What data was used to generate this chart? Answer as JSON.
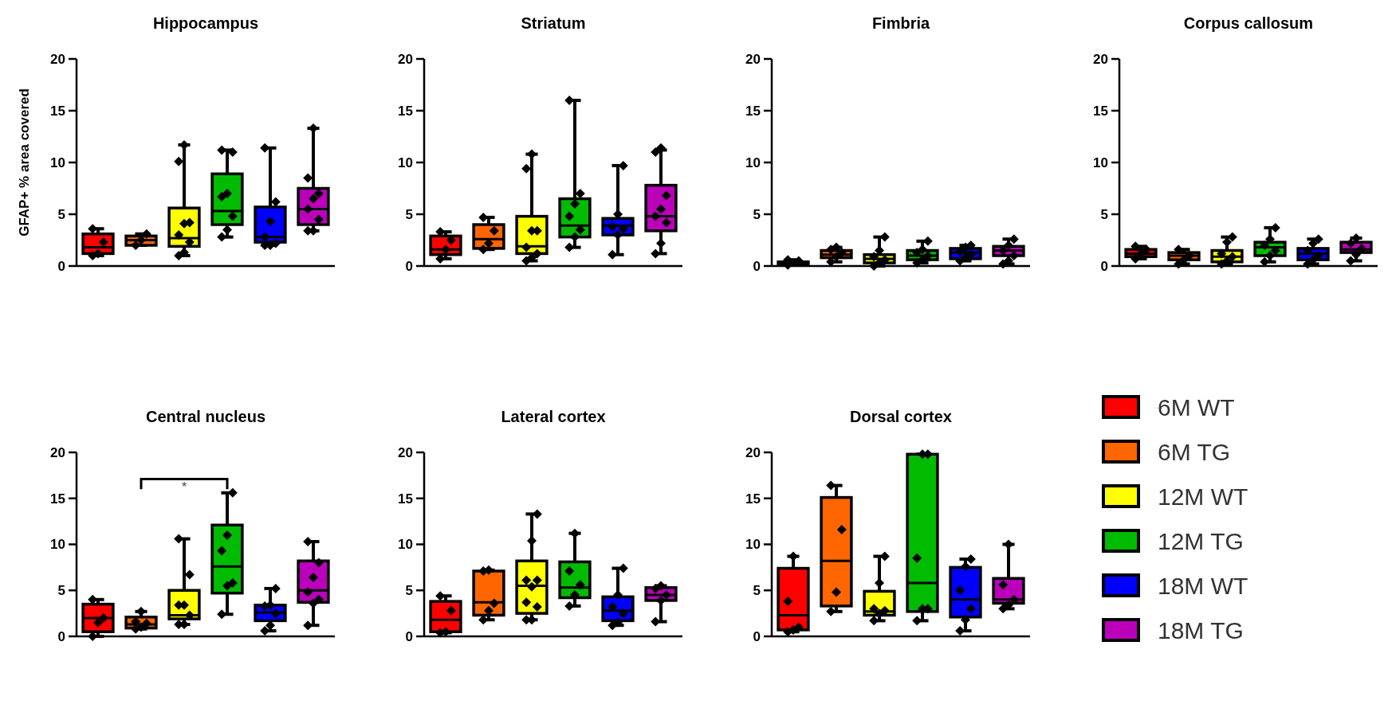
{
  "chart_data": [
    {
      "type": "box",
      "title": "Hippocampus",
      "ylabel": "GFAP+ % area covered",
      "categories": [
        null,
        null,
        null,
        null,
        null,
        null
      ],
      "colors": [
        "#ff0000",
        "#ff6600",
        "#ffff00",
        "#00bb00",
        "#0000ff",
        "#bb00bb"
      ],
      "ylim": [
        0,
        20
      ],
      "yticks": [
        0,
        5,
        10,
        15,
        20
      ],
      "marker": "diamond",
      "boxes": [
        {
          "low": 1.0,
          "q1": 1.2,
          "median": 1.8,
          "q3": 3.1,
          "high": 3.6
        },
        {
          "low": 2.0,
          "q1": 2.0,
          "median": 2.5,
          "q3": 2.9,
          "high": 3.1
        },
        {
          "low": 1.0,
          "q1": 1.9,
          "median": 2.7,
          "q3": 5.6,
          "high": 11.7
        },
        {
          "low": 2.8,
          "q1": 4.0,
          "median": 5.3,
          "q3": 8.9,
          "high": 11.2
        },
        {
          "low": 2.0,
          "q1": 2.3,
          "median": 2.8,
          "q3": 5.7,
          "high": 11.4
        },
        {
          "low": 3.4,
          "q1": 4.0,
          "median": 5.5,
          "q3": 7.5,
          "high": 13.3
        }
      ],
      "series": [
        {
          "type": "scatter",
          "color": "#000000",
          "values": [
            1.0,
            2.0,
            1.0,
            2.8,
            2.0,
            3.4
          ]
        },
        {
          "type": "scatter",
          "color": "#000000",
          "values": [
            1.2,
            2.5,
            1.3,
            3.5,
            2.0,
            3.4
          ]
        },
        {
          "type": "scatter",
          "color": "#000000",
          "values": [
            2.3,
            3.1,
            2.3,
            4.8,
            2.2,
            4.5
          ]
        },
        {
          "type": "scatter",
          "color": "#000000",
          "values": [
            3.6,
            null,
            3.0,
            6.7,
            2.8,
            5.5
          ]
        },
        {
          "type": "scatter",
          "color": "#000000",
          "values": [
            null,
            null,
            4.1,
            7.0,
            4.3,
            6.5
          ]
        },
        {
          "type": "scatter",
          "color": "#000000",
          "values": [
            null,
            null,
            4.2,
            11.0,
            6.2,
            7.0
          ]
        },
        {
          "type": "scatter",
          "color": "#000000",
          "values": [
            null,
            null,
            10.1,
            11.2,
            11.4,
            8.5
          ]
        },
        {
          "type": "scatter",
          "color": "#000000",
          "values": [
            null,
            null,
            11.7,
            null,
            null,
            13.3
          ]
        }
      ]
    },
    {
      "type": "box",
      "title": "Striatum",
      "categories": [
        null,
        null,
        null,
        null,
        null,
        null
      ],
      "colors": [
        "#ff0000",
        "#ff6600",
        "#ffff00",
        "#00bb00",
        "#0000ff",
        "#bb00bb"
      ],
      "ylim": [
        0,
        20
      ],
      "yticks": [
        0,
        5,
        10,
        15,
        20
      ],
      "marker": "diamond",
      "boxes": [
        {
          "low": 0.7,
          "q1": 1.1,
          "median": 1.6,
          "q3": 2.9,
          "high": 3.3
        },
        {
          "low": 1.6,
          "q1": 1.7,
          "median": 2.6,
          "q3": 4.0,
          "high": 4.7
        },
        {
          "low": 0.5,
          "q1": 1.2,
          "median": 1.9,
          "q3": 4.8,
          "high": 10.8
        },
        {
          "low": 1.8,
          "q1": 2.8,
          "median": 3.9,
          "q3": 6.5,
          "high": 16.0
        },
        {
          "low": 1.1,
          "q1": 3.0,
          "median": 3.9,
          "q3": 4.6,
          "high": 9.7
        },
        {
          "low": 1.2,
          "q1": 3.4,
          "median": 4.8,
          "q3": 7.8,
          "high": 11.2
        }
      ],
      "series": [
        {
          "type": "scatter",
          "color": "#000000",
          "values": [
            0.7,
            1.6,
            0.5,
            1.8,
            1.1,
            1.2
          ]
        },
        {
          "type": "scatter",
          "color": "#000000",
          "values": [
            1.6,
            2.2,
            0.8,
            2.8,
            3.0,
            2.2
          ]
        },
        {
          "type": "scatter",
          "color": "#000000",
          "values": [
            2.5,
            3.4,
            1.2,
            3.5,
            3.6,
            4.2
          ]
        },
        {
          "type": "scatter",
          "color": "#000000",
          "values": [
            3.3,
            4.7,
            1.8,
            4.8,
            3.8,
            4.8
          ]
        },
        {
          "type": "scatter",
          "color": "#000000",
          "values": [
            null,
            null,
            3.4,
            6.0,
            5.0,
            5.5
          ]
        },
        {
          "type": "scatter",
          "color": "#000000",
          "values": [
            null,
            null,
            3.4,
            7.0,
            9.7,
            6.8
          ]
        },
        {
          "type": "scatter",
          "color": "#000000",
          "values": [
            null,
            null,
            9.4,
            16.0,
            null,
            11.0
          ]
        },
        {
          "type": "scatter",
          "color": "#000000",
          "values": [
            null,
            null,
            10.8,
            null,
            null,
            11.4
          ]
        }
      ]
    },
    {
      "type": "box",
      "title": "Fimbria",
      "categories": [
        null,
        null,
        null,
        null,
        null,
        null
      ],
      "colors": [
        "#ff0000",
        "#ff6600",
        "#ffff00",
        "#00bb00",
        "#0000ff",
        "#bb00bb"
      ],
      "ylim": [
        0,
        20
      ],
      "yticks": [
        0,
        5,
        10,
        15,
        20
      ],
      "marker": "diamond",
      "boxes": [
        {
          "low": 0.1,
          "q1": 0.2,
          "median": 0.3,
          "q3": 0.4,
          "high": 0.6
        },
        {
          "low": 0.4,
          "q1": 0.8,
          "median": 1.1,
          "q3": 1.5,
          "high": 1.8
        },
        {
          "low": 0.0,
          "q1": 0.3,
          "median": 0.7,
          "q3": 1.1,
          "high": 2.8
        },
        {
          "low": 0.3,
          "q1": 0.6,
          "median": 1.0,
          "q3": 1.5,
          "high": 2.4
        },
        {
          "low": 0.5,
          "q1": 0.7,
          "median": 1.3,
          "q3": 1.7,
          "high": 2.0
        },
        {
          "low": 0.2,
          "q1": 1.0,
          "median": 1.5,
          "q3": 1.9,
          "high": 2.6
        }
      ],
      "series": [
        {
          "type": "scatter",
          "color": "#000000",
          "values": [
            0.1,
            0.4,
            0.0,
            0.3,
            0.5,
            0.2
          ]
        },
        {
          "type": "scatter",
          "color": "#000000",
          "values": [
            null,
            0.9,
            0.3,
            0.6,
            0.8,
            0.5
          ]
        },
        {
          "type": "scatter",
          "color": "#000000",
          "values": [
            0.5,
            1.3,
            0.6,
            1.0,
            1.1,
            1.0
          ]
        },
        {
          "type": "scatter",
          "color": "#000000",
          "values": [
            0.6,
            1.6,
            0.9,
            1.3,
            1.4,
            1.5
          ]
        },
        {
          "type": "scatter",
          "color": "#000000",
          "values": [
            null,
            1.8,
            1.5,
            1.6,
            1.8,
            2.0
          ]
        },
        {
          "type": "scatter",
          "color": "#000000",
          "values": [
            null,
            null,
            2.8,
            2.4,
            2.0,
            2.6
          ]
        }
      ]
    },
    {
      "type": "box",
      "title": "Corpus callosum",
      "categories": [
        null,
        null,
        null,
        null,
        null,
        null
      ],
      "colors": [
        "#ff0000",
        "#ff6600",
        "#ffff00",
        "#00bb00",
        "#0000ff",
        "#bb00bb"
      ],
      "ylim": [
        0,
        20
      ],
      "yticks": [
        0,
        5,
        10,
        15,
        20
      ],
      "marker": "diamond",
      "boxes": [
        {
          "low": 0.7,
          "q1": 0.9,
          "median": 1.2,
          "q3": 1.6,
          "high": 1.9
        },
        {
          "low": 0.2,
          "q1": 0.6,
          "median": 1.0,
          "q3": 1.3,
          "high": 1.6
        },
        {
          "low": 0.2,
          "q1": 0.4,
          "median": 0.9,
          "q3": 1.5,
          "high": 2.8
        },
        {
          "low": 0.4,
          "q1": 1.0,
          "median": 1.8,
          "q3": 2.3,
          "high": 3.7
        },
        {
          "low": 0.2,
          "q1": 0.6,
          "median": 1.2,
          "q3": 1.7,
          "high": 2.6
        },
        {
          "low": 0.5,
          "q1": 1.3,
          "median": 1.6,
          "q3": 2.3,
          "high": 2.7
        }
      ],
      "series": [
        {
          "type": "scatter",
          "color": "#000000",
          "values": [
            0.7,
            0.2,
            0.2,
            0.4,
            0.2,
            0.5
          ]
        },
        {
          "type": "scatter",
          "color": "#000000",
          "values": [
            1.2,
            0.6,
            0.5,
            1.0,
            0.6,
            1.1
          ]
        },
        {
          "type": "scatter",
          "color": "#000000",
          "values": [
            1.6,
            1.0,
            0.9,
            1.5,
            1.0,
            1.7
          ]
        },
        {
          "type": "scatter",
          "color": "#000000",
          "values": [
            1.9,
            1.6,
            1.2,
            2.0,
            1.5,
            2.2
          ]
        },
        {
          "type": "scatter",
          "color": "#000000",
          "values": [
            null,
            null,
            2.3,
            2.6,
            2.2,
            2.7
          ]
        },
        {
          "type": "scatter",
          "color": "#000000",
          "values": [
            null,
            null,
            2.8,
            3.7,
            2.6,
            null
          ]
        }
      ]
    },
    {
      "type": "box",
      "title": "Central nucleus",
      "annotations": [
        "*"
      ],
      "categories": [
        null,
        null,
        null,
        null,
        null,
        null
      ],
      "colors": [
        "#ff0000",
        "#ff6600",
        "#ffff00",
        "#00bb00",
        "#0000ff",
        "#bb00bb"
      ],
      "ylim": [
        0,
        20
      ],
      "yticks": [
        0,
        5,
        10,
        15,
        20
      ],
      "marker": "diamond",
      "boxes": [
        {
          "low": 0.0,
          "q1": 0.5,
          "median": 2.0,
          "q3": 3.5,
          "high": 4.0
        },
        {
          "low": 0.8,
          "q1": 0.9,
          "median": 1.3,
          "q3": 2.1,
          "high": 2.7
        },
        {
          "low": 1.3,
          "q1": 1.9,
          "median": 2.3,
          "q3": 5.0,
          "high": 10.6
        },
        {
          "low": 2.4,
          "q1": 4.7,
          "median": 7.6,
          "q3": 12.1,
          "high": 15.6
        },
        {
          "low": 0.6,
          "q1": 1.7,
          "median": 2.6,
          "q3": 3.4,
          "high": 5.2
        },
        {
          "low": 1.2,
          "q1": 3.7,
          "median": 5.0,
          "q3": 8.2,
          "high": 10.3
        }
      ],
      "series": [
        {
          "type": "scatter",
          "color": "#000000",
          "values": [
            0.0,
            0.8,
            1.3,
            2.4,
            0.6,
            1.2
          ]
        },
        {
          "type": "scatter",
          "color": "#000000",
          "values": [
            1.5,
            1.0,
            1.3,
            5.5,
            1.2,
            3.6
          ]
        },
        {
          "type": "scatter",
          "color": "#000000",
          "values": [
            2.0,
            1.4,
            2.3,
            5.8,
            2.5,
            4.0
          ]
        },
        {
          "type": "scatter",
          "color": "#000000",
          "values": [
            4.0,
            1.6,
            3.4,
            9.3,
            3.3,
            4.8
          ]
        },
        {
          "type": "scatter",
          "color": "#000000",
          "values": [
            null,
            2.7,
            3.4,
            11.0,
            3.4,
            6.4
          ]
        },
        {
          "type": "scatter",
          "color": "#000000",
          "values": [
            null,
            null,
            6.7,
            15.6,
            5.2,
            8.0
          ]
        },
        {
          "type": "scatter",
          "color": "#000000",
          "values": [
            null,
            null,
            10.6,
            null,
            null,
            10.3
          ]
        }
      ]
    },
    {
      "type": "box",
      "title": "Lateral cortex",
      "categories": [
        null,
        null,
        null,
        null,
        null,
        null
      ],
      "colors": [
        "#ff0000",
        "#ff6600",
        "#ffff00",
        "#00bb00",
        "#0000ff",
        "#bb00bb"
      ],
      "ylim": [
        0,
        20
      ],
      "yticks": [
        0,
        5,
        10,
        15,
        20
      ],
      "marker": "diamond",
      "boxes": [
        {
          "low": 0.4,
          "q1": 0.5,
          "median": 1.8,
          "q3": 3.8,
          "high": 4.4
        },
        {
          "low": 1.8,
          "q1": 2.3,
          "median": 3.7,
          "q3": 7.1,
          "high": 7.2
        },
        {
          "low": 1.8,
          "q1": 2.5,
          "median": 5.5,
          "q3": 8.2,
          "high": 13.3
        },
        {
          "low": 3.3,
          "q1": 4.2,
          "median": 5.3,
          "q3": 8.1,
          "high": 11.2
        },
        {
          "low": 1.2,
          "q1": 1.7,
          "median": 2.8,
          "q3": 4.3,
          "high": 7.4
        },
        {
          "low": 1.6,
          "q1": 3.9,
          "median": 4.5,
          "q3": 5.3,
          "high": 5.5
        }
      ],
      "series": [
        {
          "type": "scatter",
          "color": "#000000",
          "values": [
            0.4,
            1.8,
            1.8,
            3.3,
            1.2,
            1.6
          ]
        },
        {
          "type": "scatter",
          "color": "#000000",
          "values": [
            0.5,
            2.8,
            1.8,
            4.5,
            1.5,
            3.9
          ]
        },
        {
          "type": "scatter",
          "color": "#000000",
          "values": [
            2.8,
            3.6,
            3.2,
            5.6,
            2.5,
            4.5
          ]
        },
        {
          "type": "scatter",
          "color": "#000000",
          "values": [
            4.4,
            7.1,
            3.7,
            7.1,
            3.2,
            5.2
          ]
        },
        {
          "type": "scatter",
          "color": "#000000",
          "values": [
            null,
            7.2,
            5.4,
            11.2,
            4.5,
            5.5
          ]
        },
        {
          "type": "scatter",
          "color": "#000000",
          "values": [
            null,
            null,
            6.1,
            null,
            7.4,
            null
          ]
        },
        {
          "type": "scatter",
          "color": "#000000",
          "values": [
            null,
            null,
            6.1,
            null,
            null,
            null
          ]
        },
        {
          "type": "scatter",
          "color": "#000000",
          "values": [
            null,
            null,
            10.4,
            null,
            null,
            null
          ]
        },
        {
          "type": "scatter",
          "color": "#000000",
          "values": [
            null,
            null,
            13.3,
            null,
            null,
            null
          ]
        }
      ]
    },
    {
      "type": "box",
      "title": "Dorsal cortex",
      "legend": "right",
      "categories": [
        null,
        null,
        null,
        null,
        null,
        null
      ],
      "ylim": [
        0,
        20
      ],
      "yticks": [
        0,
        5,
        10,
        15,
        20
      ],
      "marker": "diamond",
      "series": [
        {
          "name": "6M WT",
          "color": "#ff0000",
          "boxes": [
            {
              "low": 0.5,
              "q1": 0.7,
              "median": 2.3,
              "q3": 7.4,
              "high": 8.7
            },
            null,
            null,
            null,
            null,
            null
          ]
        },
        {
          "name": "6M TG",
          "color": "#ff6600",
          "boxes": [
            null,
            {
              "low": 2.7,
              "q1": 3.3,
              "median": 8.2,
              "q3": 15.1,
              "high": 16.4
            },
            null,
            null,
            null,
            null
          ]
        },
        {
          "name": "12M WT",
          "color": "#ffff00",
          "boxes": [
            null,
            null,
            {
              "low": 1.7,
              "q1": 2.3,
              "median": 2.7,
              "q3": 4.9,
              "high": 8.7
            },
            null,
            null,
            null
          ]
        },
        {
          "name": "12M TG",
          "color": "#00bb00",
          "boxes": [
            null,
            null,
            null,
            {
              "low": 1.7,
              "q1": 2.7,
              "median": 5.8,
              "q3": 19.8,
              "high": 19.8
            },
            null,
            null
          ]
        },
        {
          "name": "18M WT",
          "color": "#0000ff",
          "boxes": [
            null,
            null,
            null,
            null,
            {
              "low": 0.6,
              "q1": 2.1,
              "median": 4.0,
              "q3": 7.5,
              "high": 8.4
            },
            null
          ]
        },
        {
          "name": "18M TG",
          "color": "#bb00bb",
          "boxes": [
            null,
            null,
            null,
            null,
            null,
            {
              "low": 3.0,
              "q1": 3.6,
              "median": 4.0,
              "q3": 6.3,
              "high": 10.0
            }
          ]
        },
        {
          "type": "scatter",
          "color": "#000000",
          "values": [
            0.5,
            2.7,
            1.7,
            1.7,
            0.6,
            3.0
          ]
        },
        {
          "type": "scatter",
          "color": "#000000",
          "values": [
            0.7,
            4.8,
            2.5,
            3.0,
            1.8,
            3.4
          ]
        },
        {
          "type": "scatter",
          "color": "#000000",
          "values": [
            1.0,
            11.6,
            2.8,
            3.0,
            3.0,
            4.0
          ]
        },
        {
          "type": "scatter",
          "color": "#000000",
          "values": [
            3.8,
            16.4,
            3.0,
            8.5,
            5.0,
            5.6
          ]
        },
        {
          "type": "scatter",
          "color": "#000000",
          "values": [
            8.7,
            null,
            5.8,
            19.8,
            7.6,
            10.0
          ]
        },
        {
          "type": "scatter",
          "color": "#000000",
          "values": [
            null,
            null,
            8.7,
            19.8,
            8.4,
            null
          ]
        }
      ]
    }
  ]
}
